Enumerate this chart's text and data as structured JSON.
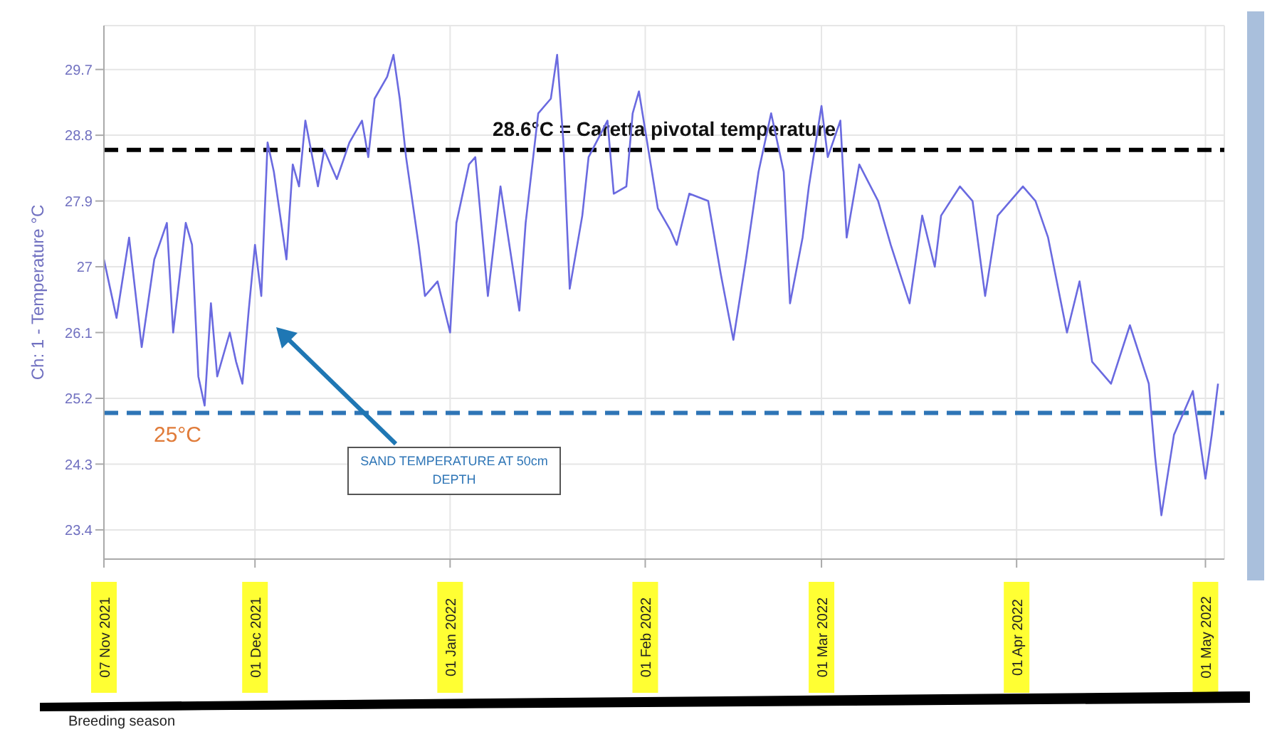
{
  "chart_data": {
    "type": "line",
    "ylabel": "Ch: 1 - Temperature °C",
    "x": [
      "2021-11-07",
      "2021-11-08",
      "2021-11-09",
      "2021-11-11",
      "2021-11-13",
      "2021-11-15",
      "2021-11-17",
      "2021-11-18",
      "2021-11-20",
      "2021-11-21",
      "2021-11-22",
      "2021-11-23",
      "2021-11-24",
      "2021-11-25",
      "2021-11-27",
      "2021-11-28",
      "2021-11-29",
      "2021-11-30",
      "2021-12-01",
      "2021-12-02",
      "2021-12-03",
      "2021-12-04",
      "2021-12-06",
      "2021-12-07",
      "2021-12-08",
      "2021-12-09",
      "2021-12-11",
      "2021-12-12",
      "2021-12-14",
      "2021-12-16",
      "2021-12-18",
      "2021-12-19",
      "2021-12-20",
      "2021-12-22",
      "2021-12-23",
      "2021-12-24",
      "2021-12-25",
      "2021-12-27",
      "2021-12-28",
      "2021-12-30",
      "2022-01-01",
      "2022-01-02",
      "2022-01-04",
      "2022-01-05",
      "2022-01-07",
      "2022-01-09",
      "2022-01-12",
      "2022-01-13",
      "2022-01-15",
      "2022-01-17",
      "2022-01-18",
      "2022-01-19",
      "2022-01-20",
      "2022-01-22",
      "2022-01-23",
      "2022-01-26",
      "2022-01-27",
      "2022-01-29",
      "2022-01-30",
      "2022-01-31",
      "2022-02-03",
      "2022-02-05",
      "2022-02-06",
      "2022-02-08",
      "2022-02-11",
      "2022-02-13",
      "2022-02-15",
      "2022-02-17",
      "2022-02-19",
      "2022-02-21",
      "2022-02-23",
      "2022-02-24",
      "2022-02-26",
      "2022-02-27",
      "2022-03-01",
      "2022-03-02",
      "2022-03-04",
      "2022-03-05",
      "2022-03-07",
      "2022-03-10",
      "2022-03-12",
      "2022-03-15",
      "2022-03-17",
      "2022-03-19",
      "2022-03-20",
      "2022-03-23",
      "2022-03-25",
      "2022-03-27",
      "2022-03-29",
      "2022-04-02",
      "2022-04-04",
      "2022-04-06",
      "2022-04-09",
      "2022-04-11",
      "2022-04-13",
      "2022-04-16",
      "2022-04-19",
      "2022-04-22",
      "2022-04-23",
      "2022-04-24",
      "2022-04-26",
      "2022-04-29",
      "2022-05-01",
      "2022-05-02",
      "2022-05-03"
    ],
    "series": [
      {
        "color": "#6a6ae0",
        "values": [
          27.1,
          26.7,
          26.3,
          27.4,
          25.9,
          27.1,
          27.6,
          26.1,
          27.6,
          27.3,
          25.5,
          25.1,
          26.5,
          25.5,
          26.1,
          25.7,
          25.4,
          26.4,
          27.3,
          26.6,
          28.7,
          28.3,
          27.1,
          28.4,
          28.1,
          29.0,
          28.1,
          28.6,
          28.2,
          28.7,
          29.0,
          28.5,
          29.3,
          29.6,
          29.9,
          29.3,
          28.5,
          27.3,
          26.6,
          26.8,
          26.1,
          27.6,
          28.4,
          28.5,
          26.6,
          28.1,
          26.4,
          27.6,
          29.1,
          29.3,
          29.9,
          28.7,
          26.7,
          27.7,
          28.5,
          29.0,
          28.0,
          28.1,
          29.1,
          29.4,
          27.8,
          27.5,
          27.3,
          28.0,
          27.9,
          26.9,
          26.0,
          27.1,
          28.3,
          29.1,
          28.3,
          26.5,
          27.4,
          28.1,
          29.2,
          28.5,
          29.0,
          27.4,
          28.4,
          27.9,
          27.3,
          26.5,
          27.7,
          27.0,
          27.7,
          28.1,
          27.9,
          26.6,
          27.7,
          28.1,
          27.9,
          27.4,
          26.1,
          26.8,
          25.7,
          25.4,
          26.2,
          25.4,
          24.4,
          23.6,
          24.7,
          25.3,
          24.1,
          24.7,
          25.4
        ]
      }
    ],
    "xlim": [
      "2021-11-07",
      "2022-05-04"
    ],
    "xticks": [
      {
        "value": "2021-11-07",
        "label": "07 Nov 2021"
      },
      {
        "value": "2021-12-01",
        "label": "01 Dec 2021"
      },
      {
        "value": "2022-01-01",
        "label": "01 Jan 2022"
      },
      {
        "value": "2022-02-01",
        "label": "01 Feb 2022"
      },
      {
        "value": "2022-03-01",
        "label": "01 Mar 2022"
      },
      {
        "value": "2022-04-01",
        "label": "01 Apr 2022"
      },
      {
        "value": "2022-05-01",
        "label": "01 May 2022"
      }
    ],
    "ylim": [
      23.0,
      30.3
    ],
    "yticks": [
      23.4,
      24.3,
      25.2,
      26.1,
      27,
      27.9,
      28.8,
      29.7
    ],
    "grid": true,
    "ref_lines": [
      {
        "axis": "y",
        "value": 28.6,
        "label": "28.6°C = Caretta pivotal temperature",
        "color": "#000000",
        "line_style": "dashed"
      },
      {
        "axis": "y",
        "value": 25,
        "label": "25°C",
        "color": "#2e75b6",
        "line_style": "dashed"
      }
    ],
    "annotations": [
      "SAND TEMPERATURE AT 50cm DEPTH",
      "Breeding season"
    ]
  }
}
